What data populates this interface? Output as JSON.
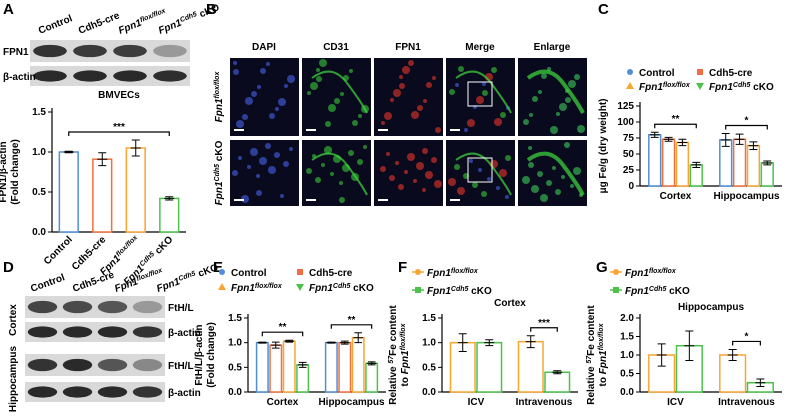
{
  "figure": {
    "panels": [
      "A",
      "B",
      "C",
      "D",
      "E",
      "F",
      "G"
    ],
    "blot_a": {
      "lanes": [
        "Control",
        "Cdh5-cre",
        [
          {
            "i": "Fpn1"
          },
          {
            "sup": "flox/flox"
          }
        ],
        [
          {
            "i": "Fpn1"
          },
          {
            "sup": "Cdh5"
          },
          " cKO"
        ]
      ],
      "rows": [
        "FPN1",
        "β-actin"
      ]
    },
    "imaging_b": {
      "columns": [
        "DAPI",
        "CD31",
        "FPN1",
        "Merge",
        "Enlarge"
      ],
      "rows": [
        [
          {
            "i": "Fpn1"
          },
          {
            "sup": "flox/flox"
          }
        ],
        [
          {
            "i": "Fpn1"
          },
          {
            "sup": "Cdh5"
          },
          " cKO"
        ]
      ]
    },
    "blot_d": {
      "lanes": [
        "Control",
        "Cdh5-cre",
        [
          {
            "i": "Fpn1"
          },
          {
            "sup": "flox/flox"
          }
        ],
        [
          {
            "i": "Fpn1"
          },
          {
            "sup": "Cdh5"
          },
          " cKO"
        ]
      ],
      "regions": [
        "Cortex",
        "Hippocampus"
      ],
      "rows": [
        "FtH/L",
        "β-actin"
      ]
    }
  },
  "chart_data": [
    {
      "type": "bar",
      "title": "BMVECs",
      "categories": [
        "Control",
        "Cdh5-cre",
        [
          {
            "i": "Fpn1"
          },
          {
            "sup": "flox/flox"
          }
        ],
        [
          {
            "i": "Fpn1"
          },
          {
            "sup": "Cdh5"
          },
          " cKO"
        ]
      ],
      "values": [
        1.0,
        0.91,
        1.05,
        0.42
      ],
      "errors": [
        0.01,
        0.08,
        0.1,
        0.02
      ],
      "colors": [
        "#4f8fd6",
        "#f07040",
        "#f7a632",
        "#4cc24c"
      ],
      "ylabel": [
        "FPN1/β-actin",
        "(Fold change)"
      ],
      "ylim": [
        0,
        1.5
      ],
      "yticks": [
        {
          "value": 0,
          "label": "0.0"
        },
        0.5,
        {
          "value": 1,
          "label": "1.0"
        },
        1.5
      ],
      "annotations": [
        "***"
      ]
    },
    {
      "type": "bar",
      "categories": [
        "Cortex",
        "Hippocampus"
      ],
      "series": [
        {
          "name": "Control",
          "color": "#4f8fd6",
          "marker": "circle",
          "values": [
            80,
            72
          ],
          "errors": [
            4,
            10
          ]
        },
        {
          "name": "Cdh5-cre",
          "color": "#f07040",
          "marker": "square",
          "values": [
            73,
            73
          ],
          "errors": [
            3,
            8
          ]
        },
        {
          "name": [
            {
              "i": "Fpn1"
            },
            {
              "sup": "flox/flox"
            }
          ],
          "color": "#f7a632",
          "marker": "triangle",
          "values": [
            68,
            63
          ],
          "errors": [
            5,
            6
          ]
        },
        {
          "name": [
            {
              "i": "Fpn1"
            },
            {
              "sup": "Cdh5"
            },
            " cKO"
          ],
          "color": "#4cc24c",
          "marker": "triangle-down",
          "values": [
            33,
            36
          ],
          "errors": [
            4,
            3
          ]
        }
      ],
      "ylabel": [
        "μg Fe/g (dry weight)"
      ],
      "ylim": [
        0,
        125
      ],
      "yticks": [
        0,
        25,
        50,
        75,
        100,
        125
      ],
      "annotations": [
        "**",
        "*"
      ]
    },
    {
      "type": "bar",
      "categories": [
        "Cortex",
        "Hippocampus"
      ],
      "series": [
        {
          "name": "Control",
          "color": "#4f8fd6",
          "marker": "circle",
          "values": [
            1.0,
            1.0
          ],
          "errors": [
            0.01,
            0.01
          ]
        },
        {
          "name": "Cdh5-cre",
          "color": "#f07040",
          "marker": "square",
          "values": [
            0.95,
            1.0
          ],
          "errors": [
            0.06,
            0.03
          ]
        },
        {
          "name": [
            {
              "i": "Fpn1"
            },
            {
              "sup": "flox/flox"
            }
          ],
          "color": "#f7a632",
          "marker": "triangle",
          "values": [
            1.03,
            1.1
          ],
          "errors": [
            0.02,
            0.1
          ]
        },
        {
          "name": [
            {
              "i": "Fpn1"
            },
            {
              "sup": "Cdh5"
            },
            " cKO"
          ],
          "color": "#4cc24c",
          "marker": "triangle-down",
          "values": [
            0.55,
            0.58
          ],
          "errors": [
            0.05,
            0.03
          ]
        }
      ],
      "ylabel": [
        "FtH/L/β-actin",
        "(Fold change)"
      ],
      "ylim": [
        0,
        1.5
      ],
      "yticks": [
        {
          "value": 0,
          "label": "0.0"
        },
        0.5,
        {
          "value": 1,
          "label": "1.0"
        },
        1.5
      ],
      "annotations": [
        "**",
        "**"
      ]
    },
    {
      "type": "bar",
      "title": "Cortex",
      "categories": [
        "ICV",
        "Intravenous"
      ],
      "series": [
        {
          "name": [
            {
              "i": "Fpn1"
            },
            {
              "sup": "flox/flox"
            }
          ],
          "color": "#f7a632",
          "marker": "circle",
          "values": [
            1.0,
            1.02
          ],
          "errors": [
            0.18,
            0.12
          ]
        },
        {
          "name": [
            {
              "i": "Fpn1"
            },
            {
              "sup": "Cdh5"
            },
            " cKO"
          ],
          "color": "#4cc24c",
          "marker": "square",
          "values": [
            1.0,
            0.4
          ],
          "errors": [
            0.06,
            0.03
          ]
        }
      ],
      "ylabel": [
        [
          "Relative ",
          {
            "sup": "57"
          },
          "Fe content"
        ],
        [
          "to ",
          {
            "i": "Fpn1"
          },
          {
            "sup": "flox/flox"
          }
        ]
      ],
      "ylim": [
        0,
        1.5
      ],
      "yticks": [
        {
          "value": 0,
          "label": "0.0"
        },
        0.5,
        {
          "value": 1,
          "label": "1.0"
        },
        1.5
      ],
      "annotations": [
        null,
        "***"
      ]
    },
    {
      "type": "bar",
      "title": "Hippocampus",
      "categories": [
        "ICV",
        "Intravenous"
      ],
      "series": [
        {
          "name": [
            {
              "i": "Fpn1"
            },
            {
              "sup": "flox/flox"
            }
          ],
          "color": "#f7a632",
          "marker": "circle",
          "values": [
            1.0,
            1.0
          ],
          "errors": [
            0.3,
            0.15
          ]
        },
        {
          "name": [
            {
              "i": "Fpn1"
            },
            {
              "sup": "Cdh5"
            },
            " cKO"
          ],
          "color": "#4cc24c",
          "marker": "square",
          "values": [
            1.25,
            0.25
          ],
          "errors": [
            0.4,
            0.1
          ]
        }
      ],
      "ylabel": [
        [
          "Relative ",
          {
            "sup": "57"
          },
          "Fe content"
        ],
        [
          "to ",
          {
            "i": "Fpn1"
          },
          {
            "sup": "flox/flox"
          }
        ]
      ],
      "ylim": [
        0,
        2
      ],
      "yticks": [
        {
          "value": 0,
          "label": "0.0"
        },
        0.5,
        {
          "value": 1,
          "label": "1.0"
        },
        1.5,
        {
          "value": 2,
          "label": "2.0"
        }
      ],
      "annotations": [
        null,
        "*"
      ]
    }
  ]
}
